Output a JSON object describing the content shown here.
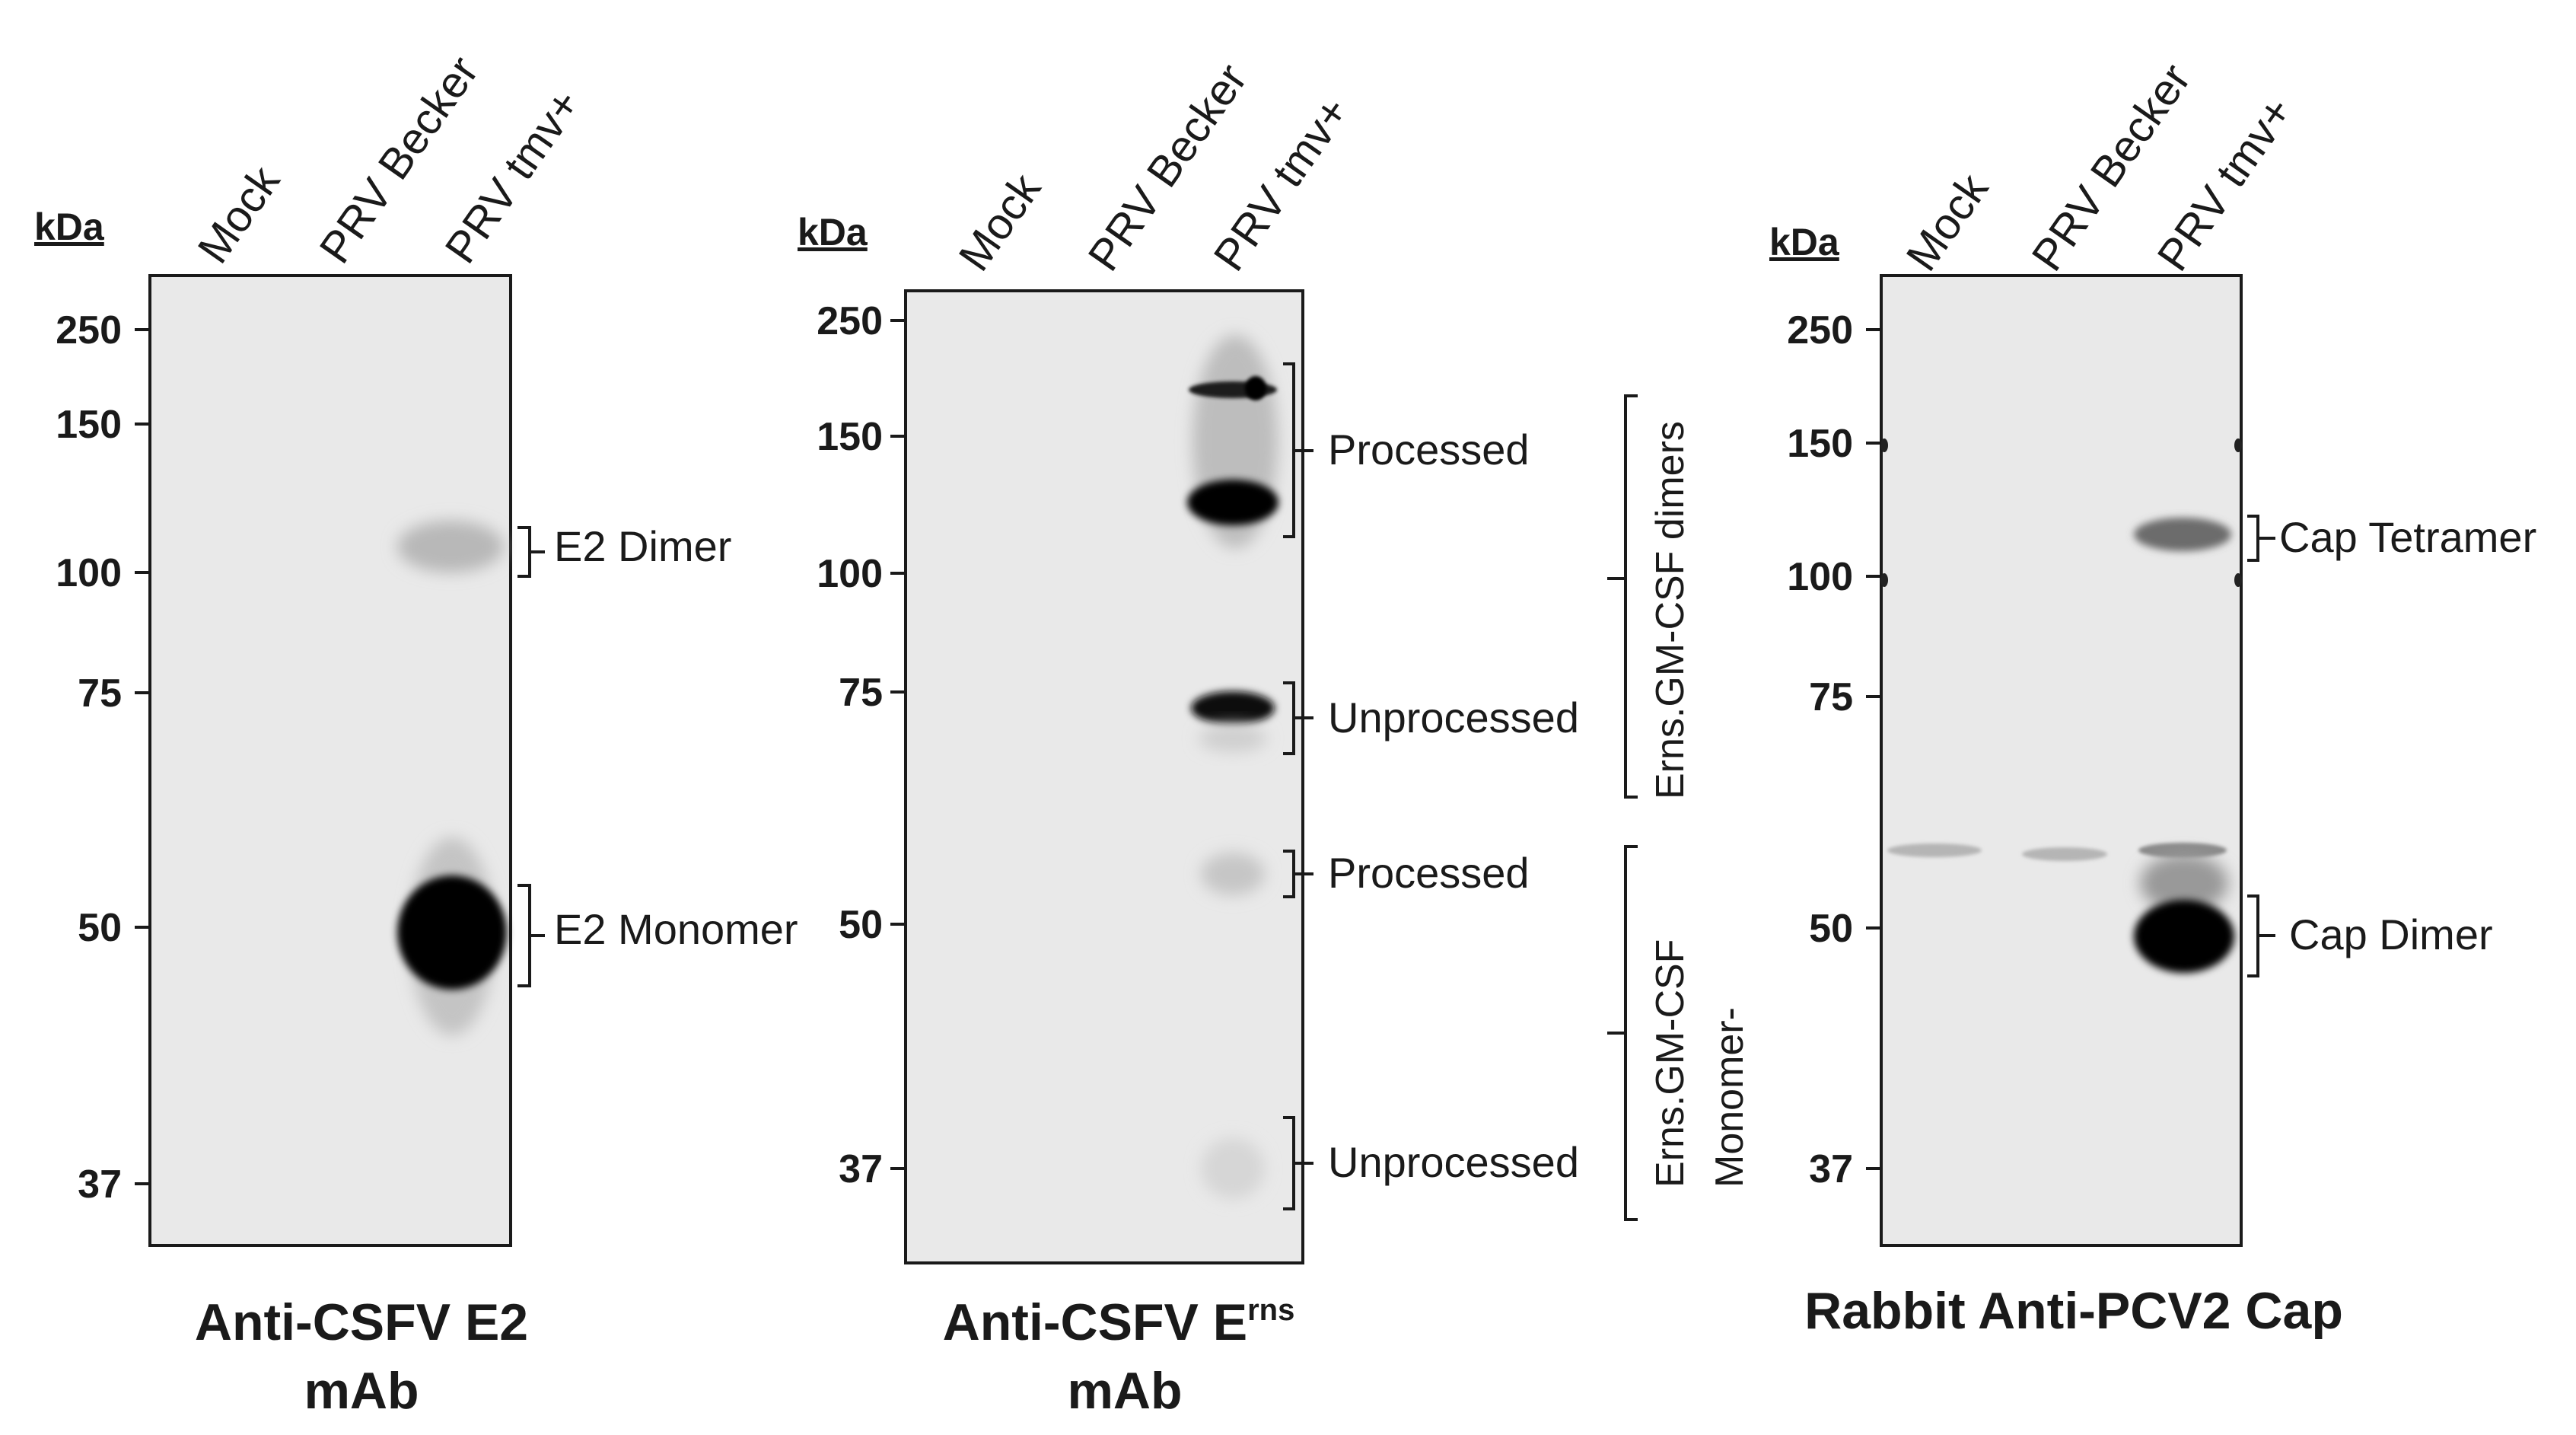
{
  "panels": [
    {
      "kda_label": "kDa",
      "lanes": [
        "Mock",
        "PRV Becker",
        "PRV tmv+"
      ],
      "markers": [
        "250",
        "150",
        "100",
        "75",
        "50",
        "37"
      ],
      "bands": [
        "E2 Dimer",
        "E2 Monomer"
      ],
      "title_line1": "Anti-CSFV E2",
      "title_line2": "mAb"
    },
    {
      "kda_label": "kDa",
      "lanes": [
        "Mock",
        "PRV Becker",
        "PRV tmv+"
      ],
      "markers": [
        "250",
        "150",
        "100",
        "75",
        "50",
        "37"
      ],
      "bands": [
        "Processed",
        "Unprocessed",
        "Processed",
        "Unprocessed"
      ],
      "groups": [
        "Erns.GM-CSF dimers",
        "Erns.GM-CSF",
        "Monomer-"
      ],
      "title_main": "Anti-CSFV E",
      "title_sup": "rns",
      "title_line2": "mAb"
    },
    {
      "kda_label": "kDa",
      "lanes": [
        "Mock",
        "PRV Becker",
        "PRV tmv+"
      ],
      "markers": [
        "250",
        "150",
        "100",
        "75",
        "50",
        "37"
      ],
      "bands": [
        "Cap Tetramer",
        "Cap Dimer"
      ],
      "title_line1": "Rabbit Anti-PCV2 Cap"
    }
  ]
}
